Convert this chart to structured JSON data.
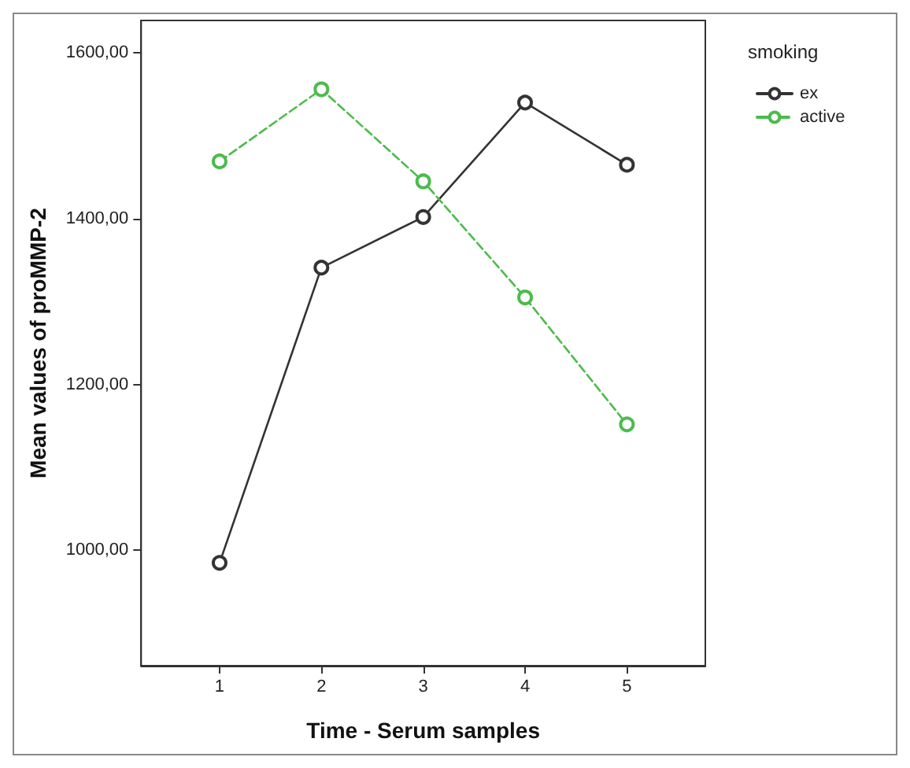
{
  "chart_data": {
    "type": "line",
    "xlabel": "Time - Serum samples",
    "ylabel": "Mean values of proMMP-2",
    "legend_title": "smoking",
    "x": [
      1,
      2,
      3,
      4,
      5
    ],
    "xlim": [
      0.23,
      5.77
    ],
    "xticks": [
      1,
      2,
      3,
      4,
      5
    ],
    "ylim": [
      861,
      1639
    ],
    "yticks": [
      {
        "value": 1000,
        "label": "1000,00"
      },
      {
        "value": 1200,
        "label": "1200,00"
      },
      {
        "value": 1400,
        "label": "1400,00"
      },
      {
        "value": 1600,
        "label": "1600,00"
      }
    ],
    "series": [
      {
        "name": "ex",
        "color": "#333333",
        "values": [
          985,
          1341,
          1402,
          1540,
          1465
        ],
        "line_style": "solid"
      },
      {
        "name": "active",
        "color": "#4cbb4c",
        "values": [
          1469,
          1556,
          1445,
          1305,
          1152
        ],
        "line_style": "dashed"
      }
    ],
    "marker": "circle",
    "grid": false,
    "legend": "top right"
  }
}
